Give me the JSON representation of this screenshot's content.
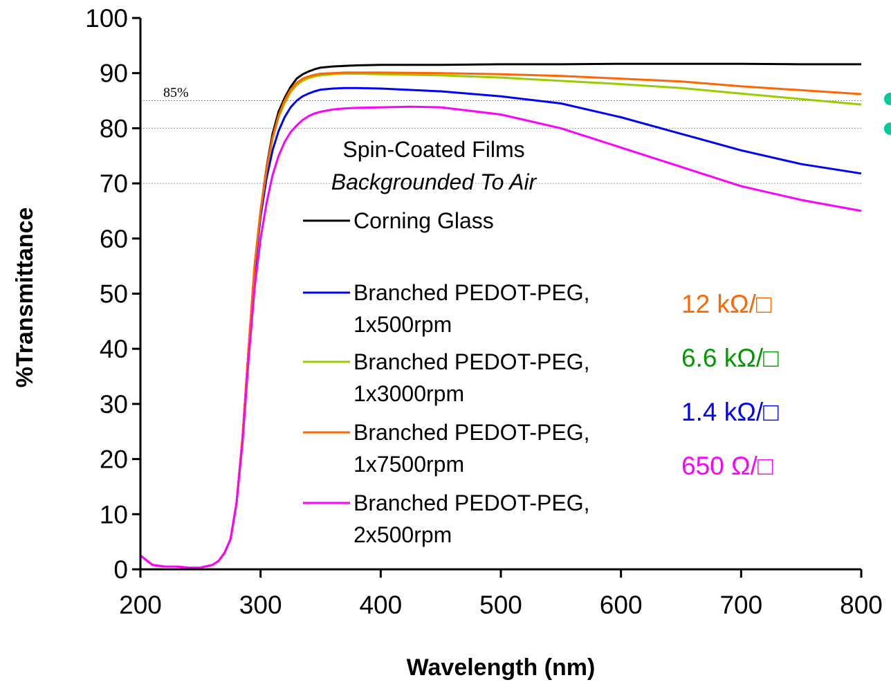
{
  "chart_data": {
    "type": "line",
    "title": "",
    "xlabel": "Wavelength (nm)",
    "ylabel": "%Transmittance",
    "xlim": [
      200,
      800
    ],
    "ylim": [
      0,
      100
    ],
    "xticks": [
      200,
      300,
      400,
      500,
      600,
      700,
      800
    ],
    "yticks": [
      0,
      10,
      20,
      30,
      40,
      50,
      60,
      70,
      80,
      90,
      100
    ],
    "grid": "horizontal gridlines at 70 and 80",
    "reference_line": {
      "y": 85,
      "label": "85%"
    },
    "legend": {
      "placement": "center-left",
      "title_line1": "Spin-Coated Films",
      "title_line2": "Backgrounded To Air"
    },
    "series": [
      {
        "name": "Corning Glass",
        "name_line1": "Corning Glass",
        "name_line2": "",
        "color": "#000000",
        "x": [
          200,
          210,
          220,
          230,
          240,
          250,
          260,
          265,
          270,
          275,
          280,
          285,
          290,
          295,
          300,
          305,
          310,
          315,
          320,
          325,
          330,
          335,
          340,
          345,
          350,
          360,
          370,
          380,
          400,
          450,
          500,
          550,
          600,
          650,
          700,
          750,
          800
        ],
        "y": [
          2.5,
          0.8,
          0.5,
          0.5,
          0.3,
          0.3,
          0.8,
          1.5,
          3,
          5.5,
          12,
          24,
          40,
          55,
          65,
          73,
          79,
          83,
          85.5,
          87.5,
          89,
          89.8,
          90.3,
          90.7,
          91,
          91.2,
          91.3,
          91.4,
          91.5,
          91.5,
          91.6,
          91.6,
          91.7,
          91.7,
          91.7,
          91.6,
          91.6
        ]
      },
      {
        "name": "Branched PEDOT-PEG, 1x500rpm",
        "name_line1": "Branched PEDOT-PEG,",
        "name_line2": "1x500rpm",
        "color": "#0000ff",
        "x": [
          200,
          210,
          220,
          230,
          240,
          250,
          260,
          265,
          270,
          275,
          280,
          285,
          290,
          295,
          300,
          305,
          310,
          315,
          320,
          325,
          330,
          335,
          340,
          345,
          350,
          360,
          370,
          380,
          400,
          450,
          500,
          550,
          600,
          650,
          700,
          750,
          800
        ],
        "y": [
          2.5,
          0.8,
          0.5,
          0.5,
          0.3,
          0.3,
          0.8,
          1.5,
          3,
          5.5,
          12,
          24,
          40,
          54,
          64,
          71,
          76,
          79.5,
          82,
          83.8,
          85,
          85.8,
          86.3,
          86.7,
          87,
          87.2,
          87.3,
          87.3,
          87.2,
          86.7,
          85.8,
          84.5,
          82,
          79,
          76,
          73.5,
          71.8
        ]
      },
      {
        "name": "Branched PEDOT-PEG, 1x3000rpm",
        "name_line1": "Branched PEDOT-PEG,",
        "name_line2": "1x3000rpm",
        "color": "#99cc00",
        "x": [
          200,
          210,
          220,
          230,
          240,
          250,
          260,
          265,
          270,
          275,
          280,
          285,
          290,
          295,
          300,
          305,
          310,
          315,
          320,
          325,
          330,
          335,
          340,
          345,
          350,
          360,
          370,
          380,
          400,
          450,
          500,
          550,
          600,
          650,
          700,
          750,
          800
        ],
        "y": [
          2.5,
          0.8,
          0.5,
          0.5,
          0.3,
          0.3,
          0.8,
          1.5,
          3,
          5.5,
          12,
          24,
          40,
          55,
          65,
          72.5,
          78,
          82,
          84.5,
          86.5,
          87.8,
          88.6,
          89.1,
          89.4,
          89.6,
          89.8,
          89.9,
          89.9,
          89.8,
          89.6,
          89.2,
          88.6,
          88,
          87.3,
          86.3,
          85.3,
          84.3
        ]
      },
      {
        "name": "Branched PEDOT-PEG, 1x7500rpm",
        "name_line1": "Branched PEDOT-PEG,",
        "name_line2": "1x7500rpm",
        "color": "#ff6600",
        "x": [
          200,
          210,
          220,
          230,
          240,
          250,
          260,
          265,
          270,
          275,
          280,
          285,
          290,
          295,
          300,
          305,
          310,
          315,
          320,
          325,
          330,
          335,
          340,
          345,
          350,
          360,
          370,
          380,
          400,
          450,
          500,
          550,
          600,
          650,
          700,
          750,
          800
        ],
        "y": [
          2.5,
          0.8,
          0.5,
          0.5,
          0.3,
          0.3,
          0.8,
          1.5,
          3,
          5.5,
          12,
          24,
          40,
          55,
          65,
          72.8,
          78.3,
          82.3,
          85,
          87,
          88.2,
          89,
          89.4,
          89.7,
          89.9,
          90,
          90.1,
          90.1,
          90.1,
          90,
          89.8,
          89.5,
          89,
          88.5,
          87.6,
          86.9,
          86.2
        ]
      },
      {
        "name": "Branched PEDOT-PEG, 2x500rpm",
        "name_line1": "Branched PEDOT-PEG,",
        "name_line2": "2x500rpm",
        "color": "#ff00ff",
        "x": [
          200,
          210,
          220,
          230,
          240,
          250,
          260,
          265,
          270,
          275,
          280,
          285,
          290,
          295,
          300,
          305,
          310,
          315,
          320,
          325,
          330,
          335,
          340,
          345,
          350,
          360,
          370,
          380,
          400,
          425,
          450,
          500,
          550,
          600,
          650,
          700,
          750,
          800
        ],
        "y": [
          2.5,
          0.8,
          0.5,
          0.5,
          0.3,
          0.3,
          0.8,
          1.5,
          3,
          5.5,
          12,
          23,
          38,
          51,
          60,
          66.5,
          71.5,
          75,
          77.5,
          79.3,
          80.5,
          81.5,
          82.2,
          82.7,
          83,
          83.4,
          83.6,
          83.7,
          83.8,
          83.9,
          83.8,
          82.5,
          80,
          76.5,
          73,
          69.5,
          67,
          65
        ]
      }
    ],
    "resistance_labels": [
      {
        "text": "12 kΩ/□",
        "color": "#ff6600"
      },
      {
        "text": "6.6 kΩ/□",
        "color": "#009900"
      },
      {
        "text": "1.4 kΩ/□",
        "color": "#0000ff"
      },
      {
        "text": "650 Ω/□",
        "color": "#ff00ff"
      }
    ],
    "bullets": [
      {
        "color": "#00cc99"
      },
      {
        "color": "#00cc99"
      }
    ]
  }
}
